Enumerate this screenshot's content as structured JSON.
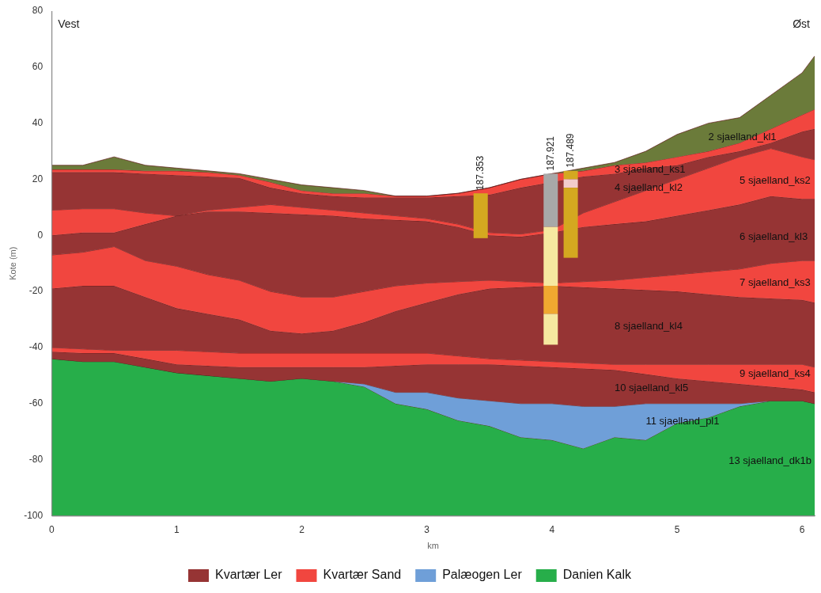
{
  "chart_data": {
    "type": "area",
    "x_label": "km",
    "y_label": "Kote (m)",
    "corner_labels": [
      "Vest",
      "Øst"
    ],
    "xlim": [
      0,
      6.1
    ],
    "xticks": [
      0,
      1,
      2,
      3,
      4,
      5,
      6
    ],
    "ylim": [
      -100,
      80
    ],
    "yticks": [
      -100,
      -80,
      -60,
      -40,
      -20,
      0,
      20,
      40,
      60,
      80
    ],
    "grid": false,
    "legend": "bottom",
    "legend_items": [
      {
        "name": "Kvartær Ler",
        "color": "#963434"
      },
      {
        "name": "Kvartær Sand",
        "color": "#f1463f"
      },
      {
        "name": "Palæogen Ler",
        "color": "#6f9fd8"
      },
      {
        "name": "Danien Kalk",
        "color": "#27ae4a"
      }
    ],
    "x": [
      0,
      0.25,
      0.5,
      0.75,
      1,
      1.25,
      1.5,
      1.75,
      2,
      2.25,
      2.5,
      2.75,
      3,
      3.25,
      3.5,
      3.75,
      4,
      4.25,
      4.5,
      4.75,
      5,
      5.25,
      5.5,
      5.75,
      6,
      6.1
    ],
    "series": [
      {
        "name": "2 sjaelland_kl1",
        "color": "#6b7b3a",
        "values": [
          25,
          25,
          28,
          25,
          24,
          23,
          22,
          20,
          18,
          17,
          16,
          14,
          14,
          15,
          17,
          20,
          22,
          24,
          26,
          30,
          36,
          40,
          42,
          50,
          58,
          64
        ]
      },
      {
        "name": "3 sjaelland_ks1",
        "color": "#f1463f",
        "values": [
          23.5,
          23.5,
          23.5,
          23,
          23,
          22.5,
          21.5,
          19,
          16,
          15,
          15,
          14,
          14,
          15,
          17,
          20,
          22,
          23,
          25,
          26,
          28,
          30,
          33,
          38,
          43,
          45
        ]
      },
      {
        "name": "4 sjaelland_kl2",
        "color": "#963434",
        "values": [
          22.5,
          22.5,
          22.5,
          22,
          21.5,
          21,
          20.5,
          17,
          15,
          14,
          13.5,
          13.5,
          13.5,
          14,
          14.5,
          17,
          19,
          21,
          22,
          24,
          25,
          28,
          30,
          33,
          37,
          38
        ]
      },
      {
        "name": "5 sjaelland_ks2",
        "color": "#f1463f",
        "values": [
          9,
          9.5,
          9.5,
          8,
          7,
          9,
          10,
          11,
          10,
          9,
          8,
          7,
          6,
          4,
          1,
          0.5,
          2,
          8,
          12,
          16,
          20,
          24,
          28,
          31,
          28,
          27
        ]
      },
      {
        "name": "6 sjaelland_kl3",
        "color": "#963434",
        "values": [
          0,
          1,
          1,
          4,
          7,
          8.5,
          8.5,
          8,
          7.5,
          7,
          6,
          5.5,
          5,
          3,
          0,
          -0.5,
          1,
          3,
          4,
          5,
          7,
          9,
          11,
          14,
          13,
          13
        ]
      },
      {
        "name": "7 sjaelland_ks3",
        "color": "#f1463f",
        "values": [
          -7,
          -6,
          -4,
          -9,
          -11,
          -14,
          -16,
          -20,
          -22,
          -22,
          -20,
          -18,
          -17,
          -16.5,
          -16,
          -16.5,
          -17,
          -16.5,
          -16,
          -15,
          -14,
          -13,
          -12,
          -10,
          -9,
          -9
        ]
      },
      {
        "name": "8 sjaelland_kl4",
        "color": "#963434",
        "values": [
          -19,
          -18,
          -18,
          -22,
          -26,
          -28,
          -30,
          -34,
          -35,
          -34,
          -31,
          -27,
          -24,
          -21,
          -19,
          -18.5,
          -18,
          -18.5,
          -19,
          -19.5,
          -20,
          -21,
          -22,
          -22.5,
          -23,
          -24
        ]
      },
      {
        "name": "9 sjaelland_ks4",
        "color": "#f1463f",
        "values": [
          -40,
          -40.5,
          -41,
          -41,
          -41,
          -41.5,
          -42,
          -42,
          -42,
          -42,
          -42,
          -42,
          -42,
          -43,
          -44,
          -44.5,
          -45,
          -45.5,
          -46,
          -46,
          -46,
          -46,
          -46,
          -46,
          -46,
          -47
        ]
      },
      {
        "name": "10 sjaelland_kl5",
        "color": "#963434",
        "values": [
          -41.5,
          -42,
          -42,
          -44,
          -46,
          -46.5,
          -47,
          -47,
          -47,
          -47,
          -47,
          -46.5,
          -46,
          -46,
          -46,
          -46.5,
          -47,
          -47.5,
          -48,
          -49.5,
          -51,
          -52,
          -53,
          -54,
          -55,
          -56
        ]
      },
      {
        "name": "11 sjaelland_pl1",
        "color": "#6f9fd8",
        "values": [
          -44,
          -45,
          -45,
          -47,
          -49,
          -50,
          -51,
          -52,
          -51,
          -52,
          -53,
          -56,
          -56,
          -58,
          -59,
          -60,
          -60,
          -61,
          -61,
          -60,
          -60,
          -60,
          -60,
          -59,
          -59,
          -60
        ]
      },
      {
        "name": "13 sjaelland_dk1b",
        "color": "#27ae4a",
        "values": [
          -44,
          -45,
          -45,
          -47,
          -49,
          -50,
          -51,
          -52,
          -51,
          -52,
          -54,
          -60,
          -62,
          -66,
          -68,
          -72,
          -73,
          -76,
          -72,
          -73,
          -67,
          -65,
          -61,
          -59,
          -59,
          -60
        ]
      }
    ],
    "boreholes": [
      {
        "label": "187.353",
        "x": 3.43,
        "segments": [
          {
            "top": 15,
            "bottom": -1,
            "color": "#d4a820"
          }
        ]
      },
      {
        "label": "187.921",
        "x": 3.99,
        "segments": [
          {
            "top": 22,
            "bottom": 3,
            "color": "#a8a8a8"
          },
          {
            "top": 3,
            "bottom": -18,
            "color": "#f6e8a0"
          },
          {
            "top": -18,
            "bottom": -28,
            "color": "#f0a830"
          },
          {
            "top": -28,
            "bottom": -39,
            "color": "#f6e8a0"
          }
        ]
      },
      {
        "label": "187.489",
        "x": 4.15,
        "segments": [
          {
            "top": 23,
            "bottom": 20,
            "color": "#d4a820"
          },
          {
            "top": 20,
            "bottom": 17,
            "color": "#f2cccc"
          },
          {
            "top": 17,
            "bottom": -8,
            "color": "#d4a820"
          }
        ]
      }
    ]
  }
}
